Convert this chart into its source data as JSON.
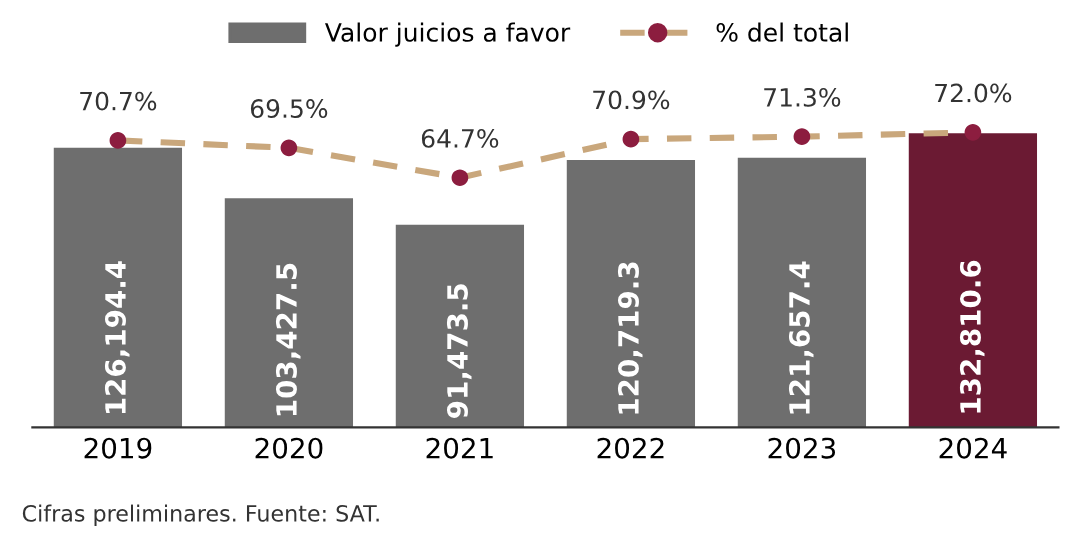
{
  "chart_data": {
    "type": "bar",
    "categories": [
      "2019",
      "2020",
      "2021",
      "2022",
      "2023",
      "2024"
    ],
    "series": [
      {
        "name": "Valor juicios a favor",
        "colors": [
          "#6e6e6e",
          "#6e6e6e",
          "#6e6e6e",
          "#6e6e6e",
          "#6e6e6e",
          "#6b1a33"
        ],
        "color": "#6e6e6e",
        "values": [
          126194.4,
          103427.5,
          91473.5,
          120719.3,
          121657.4,
          132810.6
        ],
        "value_labels": [
          "126,194.4",
          "103,427.5",
          "91,473.5",
          "120,719.3",
          "121,657.4",
          "132,810.6"
        ]
      },
      {
        "name": "% del total",
        "type": "line",
        "axis": "y2",
        "color": "#c9a77c",
        "colors": [
          "#8c1d3f",
          "#8c1d3f",
          "#8c1d3f",
          "#8c1d3f",
          "#8c1d3f",
          "#8c1d3f"
        ],
        "marker": "circle",
        "line_style": "dashed",
        "values": [
          70.7,
          69.5,
          64.7,
          70.9,
          71.3,
          72.0
        ],
        "value_labels": [
          "70.7%",
          "69.5%",
          "64.7%",
          "70.9%",
          "71.3%",
          "72.0%"
        ]
      }
    ],
    "tick_labels": "x",
    "grid": false,
    "legend": "top",
    "annotations": [
      "Cifras preliminares. Fuente: SAT."
    ]
  }
}
